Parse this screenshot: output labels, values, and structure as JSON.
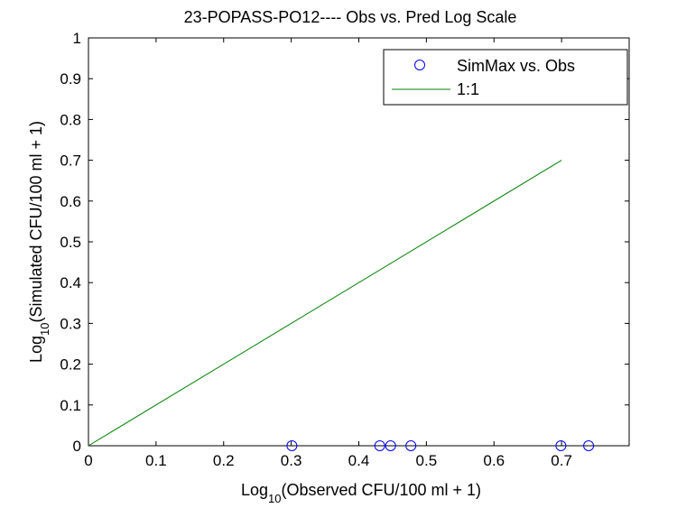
{
  "chart_data": {
    "type": "scatter",
    "title": "23-POPASS-PO12---- Obs vs. Pred Log Scale",
    "xlabel": {
      "prefix": "Log",
      "sub": "10",
      "suffix": "(Observed CFU/100 ml + 1)"
    },
    "ylabel": {
      "prefix": "Log",
      "sub": "10",
      "suffix": "(Simulated CFU/100 ml + 1)"
    },
    "xlim": [
      0,
      0.8
    ],
    "ylim": [
      0,
      1
    ],
    "xticks": [
      0,
      0.1,
      0.2,
      0.3,
      0.4,
      0.5,
      0.6,
      0.7
    ],
    "xtick_labels": [
      "0",
      "0.1",
      "0.2",
      "0.3",
      "0.4",
      "0.5",
      "0.6",
      "0.7"
    ],
    "yticks": [
      0,
      0.1,
      0.2,
      0.3,
      0.4,
      0.5,
      0.6,
      0.7,
      0.8,
      0.9,
      1
    ],
    "ytick_labels": [
      "0",
      "0.1",
      "0.2",
      "0.3",
      "0.4",
      "0.5",
      "0.6",
      "0.7",
      "0.8",
      "0.9",
      "1"
    ],
    "grid": false,
    "legend_position": "top-right",
    "series": [
      {
        "name": "SimMax vs. Obs",
        "type": "scatter",
        "marker": "circle",
        "color": "#0000ff",
        "x": [
          0.301,
          0.431,
          0.447,
          0.477,
          0.699,
          0.74
        ],
        "y": [
          0,
          0,
          0,
          0,
          0,
          0
        ]
      },
      {
        "name": "1:1",
        "type": "line",
        "color": "#008000",
        "x": [
          0,
          0.7
        ],
        "y": [
          0,
          0.7
        ]
      }
    ]
  }
}
